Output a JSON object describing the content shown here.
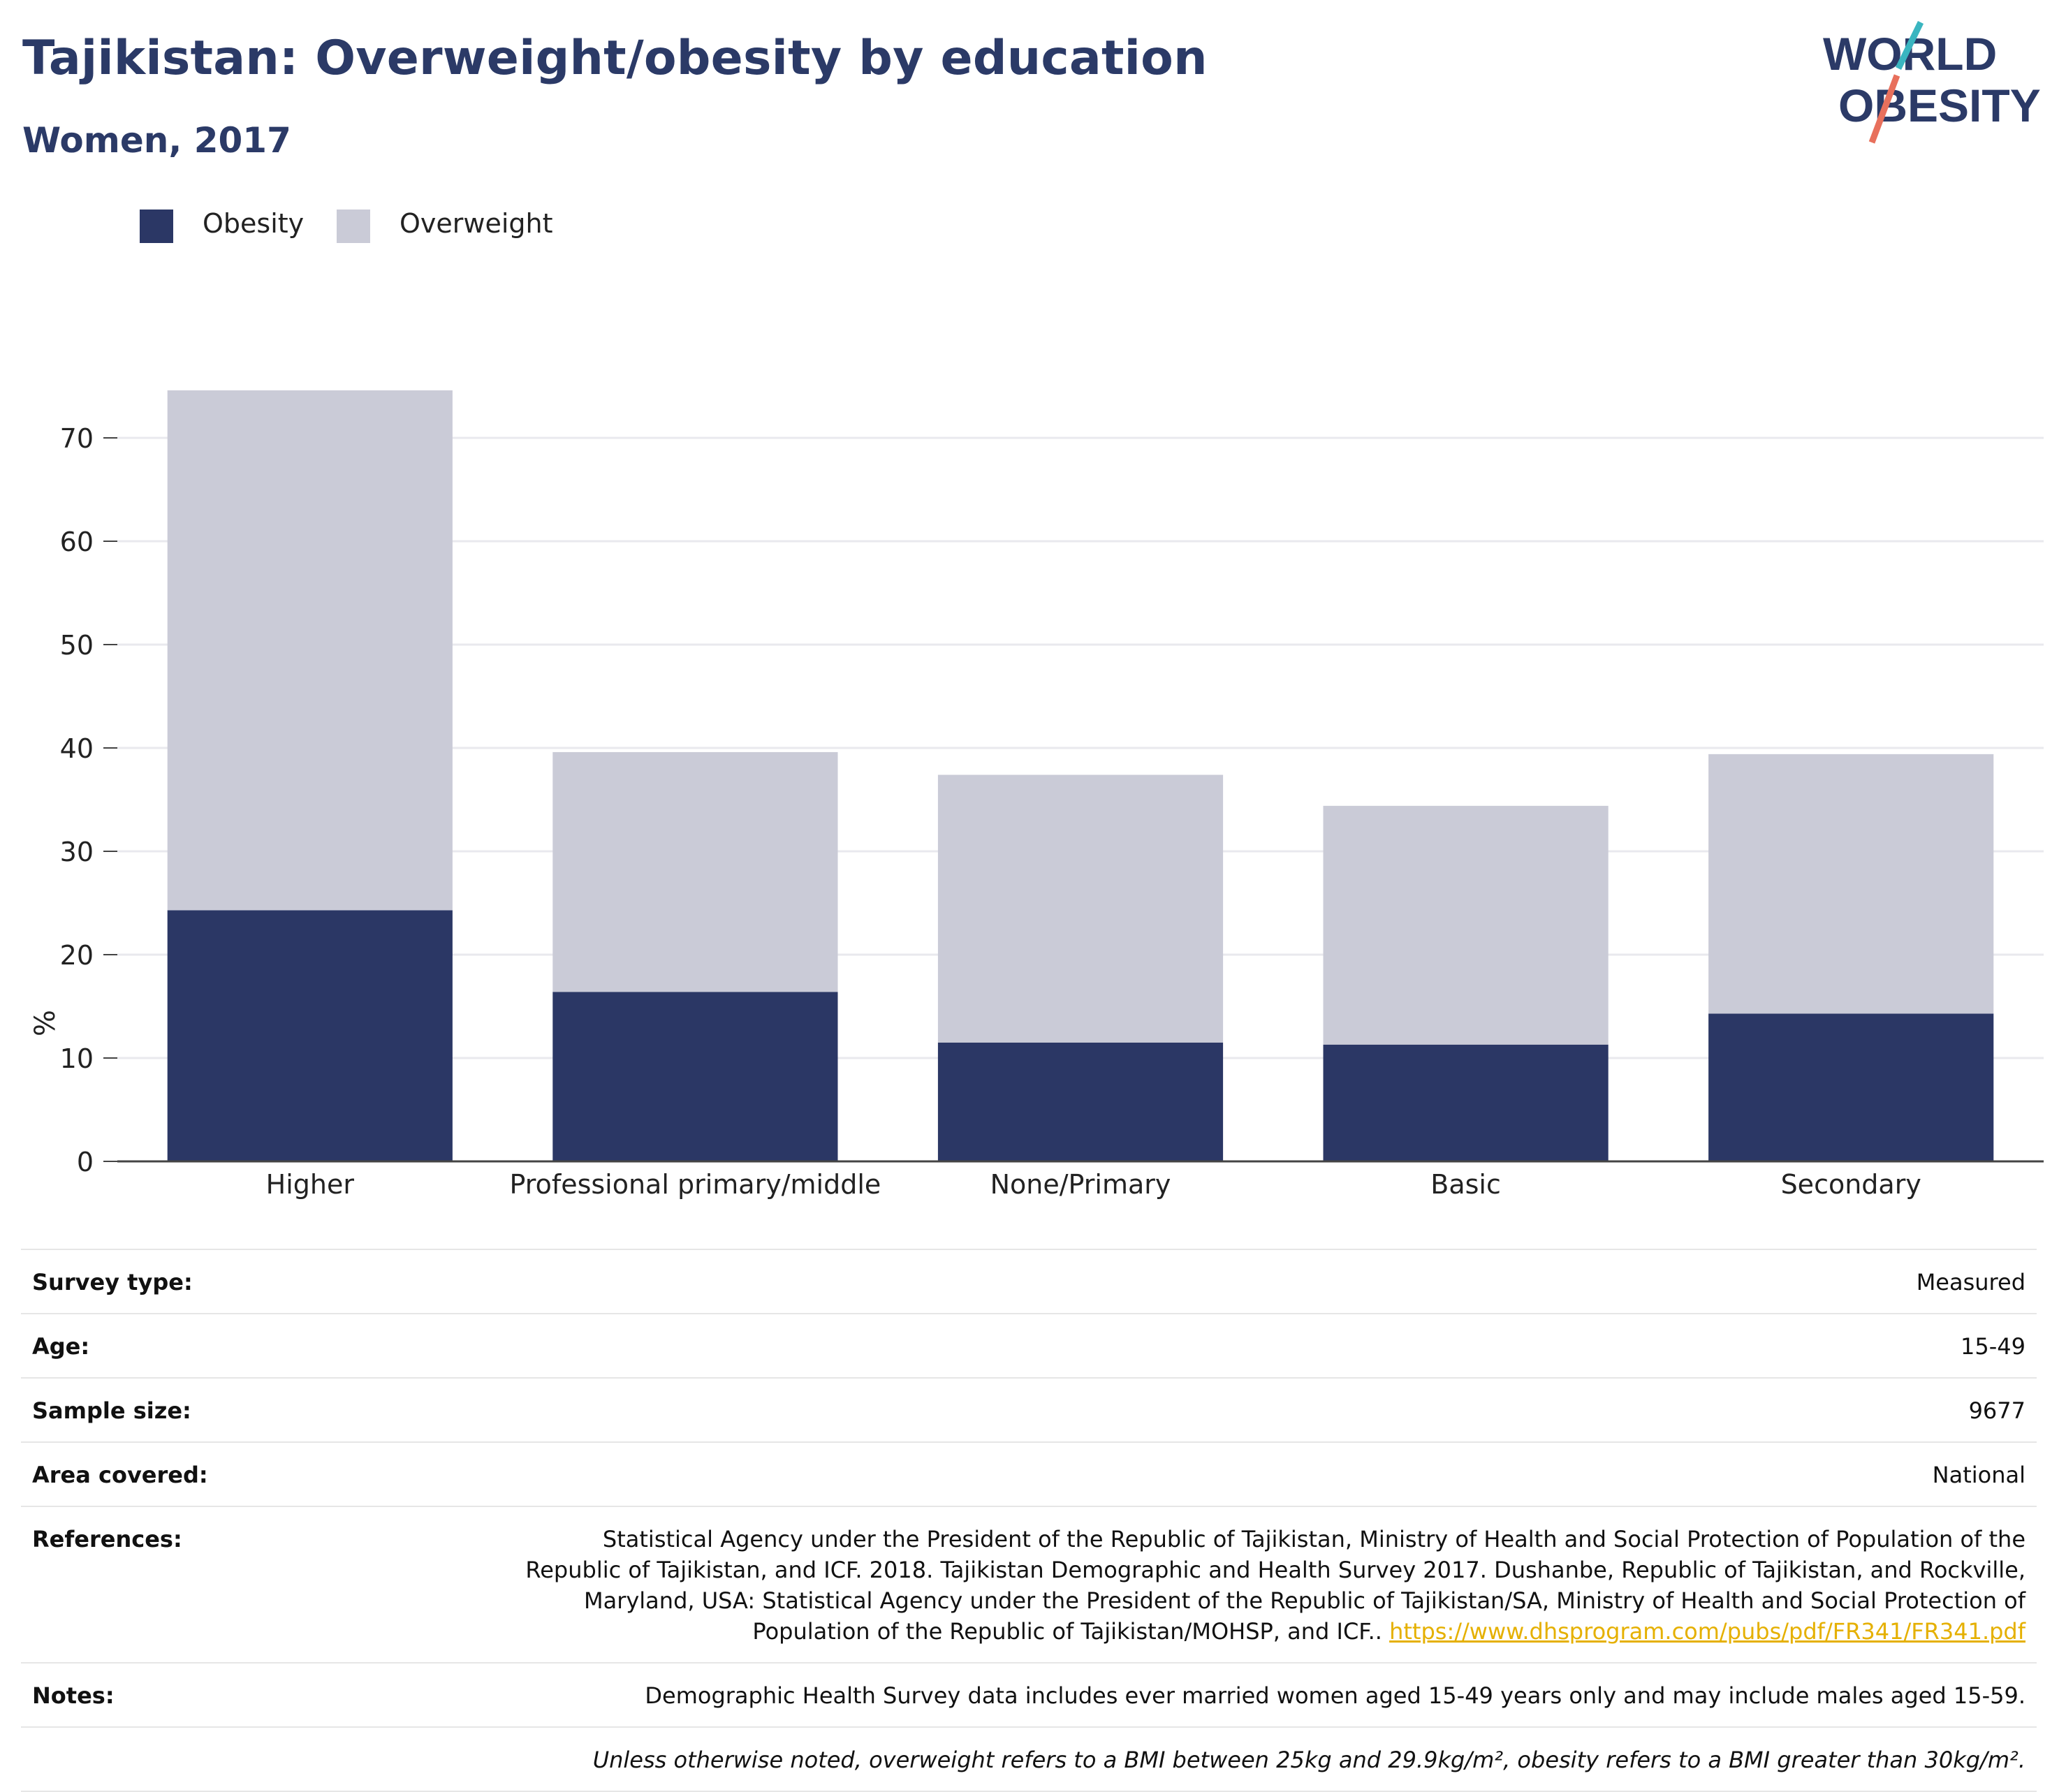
{
  "header": {
    "title": "Tajikistan: Overweight/obesity by education",
    "subtitle": "Women, 2017"
  },
  "logo": {
    "line1": "WORLD",
    "line2": "OBESITY",
    "colors": {
      "text": "#2b3a67",
      "slash_top": "#3ab5c0",
      "slash_bottom": "#e8705c"
    }
  },
  "legend": [
    {
      "label": "Obesity",
      "color": "#2b3765"
    },
    {
      "label": "Overweight",
      "color": "#cacbd7"
    }
  ],
  "chart_data": {
    "type": "bar",
    "stacked": true,
    "categories": [
      "Higher",
      "Professional primary/middle",
      "None/Primary",
      "Basic",
      "Secondary"
    ],
    "series": [
      {
        "name": "Obesity",
        "values": [
          24.3,
          16.4,
          11.5,
          11.3,
          14.3
        ],
        "color": "#2b3765"
      },
      {
        "name": "Overweight",
        "values": [
          50.3,
          23.2,
          25.9,
          23.1,
          25.1
        ],
        "color": "#cacbd7"
      }
    ],
    "totals": [
      74.6,
      39.6,
      37.4,
      34.4,
      39.4
    ],
    "ylabel": "%",
    "xlabel": "",
    "ylim": [
      0,
      75
    ],
    "yticks": [
      0,
      10,
      20,
      30,
      40,
      50,
      60,
      70
    ],
    "grid": true,
    "legend_position": "top-left"
  },
  "metadata": [
    {
      "label": "Survey type:",
      "value": "Measured"
    },
    {
      "label": "Age:",
      "value": "15-49"
    },
    {
      "label": "Sample size:",
      "value": "9677"
    },
    {
      "label": "Area covered:",
      "value": "National"
    },
    {
      "label": "References:",
      "value": "Statistical Agency under the President of the Republic of Tajikistan, Ministry of Health and Social Protection of Population of the Republic of Tajikistan, and ICF. 2018. Tajikistan Demographic and Health Survey 2017. Dushanbe, Republic of Tajikistan, and Rockville, Maryland, USA: Statistical Agency under the President of the Republic of Tajikistan/SA, Ministry of Health and Social Protection of Population of the Republic of Tajikistan/MOHSP, and ICF..",
      "link": "https://www.dhsprogram.com/pubs/pdf/FR341/FR341.pdf"
    },
    {
      "label": "Notes:",
      "value": "Demographic Health Survey data includes ever married women aged 15-49 years only and may include males aged 15-59."
    }
  ],
  "footnote": "Unless otherwise noted, overweight refers to a BMI between 25kg and 29.9kg/m², obesity refers to a BMI greater than 30kg/m²."
}
